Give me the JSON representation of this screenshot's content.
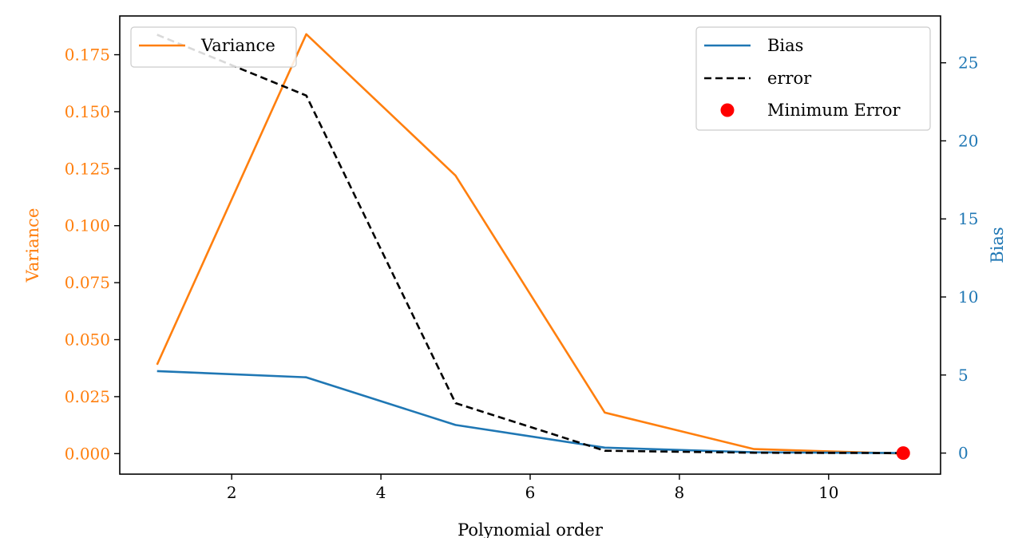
{
  "chart_data": {
    "type": "line",
    "x": [
      1,
      3,
      5,
      7,
      9,
      11
    ],
    "xlabel": "Polynomial order",
    "xlim": [
      0.5,
      11.5
    ],
    "xticks": [
      2,
      4,
      6,
      8,
      10
    ],
    "left_axis": {
      "label": "Variance",
      "color": "#ff7f0e",
      "lim": [
        -0.009,
        0.192
      ],
      "ticks": [
        0.0,
        0.025,
        0.05,
        0.075,
        0.1,
        0.125,
        0.15,
        0.175
      ],
      "tick_labels": [
        "0.000",
        "0.025",
        "0.050",
        "0.075",
        "0.100",
        "0.125",
        "0.150",
        "0.175"
      ]
    },
    "right_axis": {
      "label": "Bias",
      "color": "#1f77b4",
      "lim": [
        -1.35,
        28.0
      ],
      "ticks": [
        0,
        5,
        10,
        15,
        20,
        25
      ],
      "tick_labels": [
        "0",
        "5",
        "10",
        "15",
        "20",
        "25"
      ]
    },
    "series": [
      {
        "name": "Variance",
        "axis": "left",
        "color": "#ff7f0e",
        "dash": "solid",
        "values": [
          0.039,
          0.184,
          0.122,
          0.018,
          0.002,
          0.0
        ]
      },
      {
        "name": "Bias",
        "axis": "right",
        "color": "#1f77b4",
        "dash": "solid",
        "values": [
          5.25,
          4.85,
          1.8,
          0.35,
          0.05,
          0.0
        ]
      },
      {
        "name": "error",
        "axis": "right",
        "color": "#000000",
        "dash": "dashed",
        "values": [
          26.8,
          22.9,
          3.2,
          0.15,
          0.02,
          0.0
        ]
      }
    ],
    "minimum_error": {
      "name": "Minimum Error",
      "x": 11,
      "y": 0.0,
      "axis": "right",
      "color": "#ff0000"
    },
    "legends": [
      {
        "placement": "upper-left",
        "entries": [
          "Variance"
        ]
      },
      {
        "placement": "upper-right",
        "entries": [
          "Bias",
          "error",
          "Minimum Error"
        ]
      }
    ],
    "grid": false
  }
}
